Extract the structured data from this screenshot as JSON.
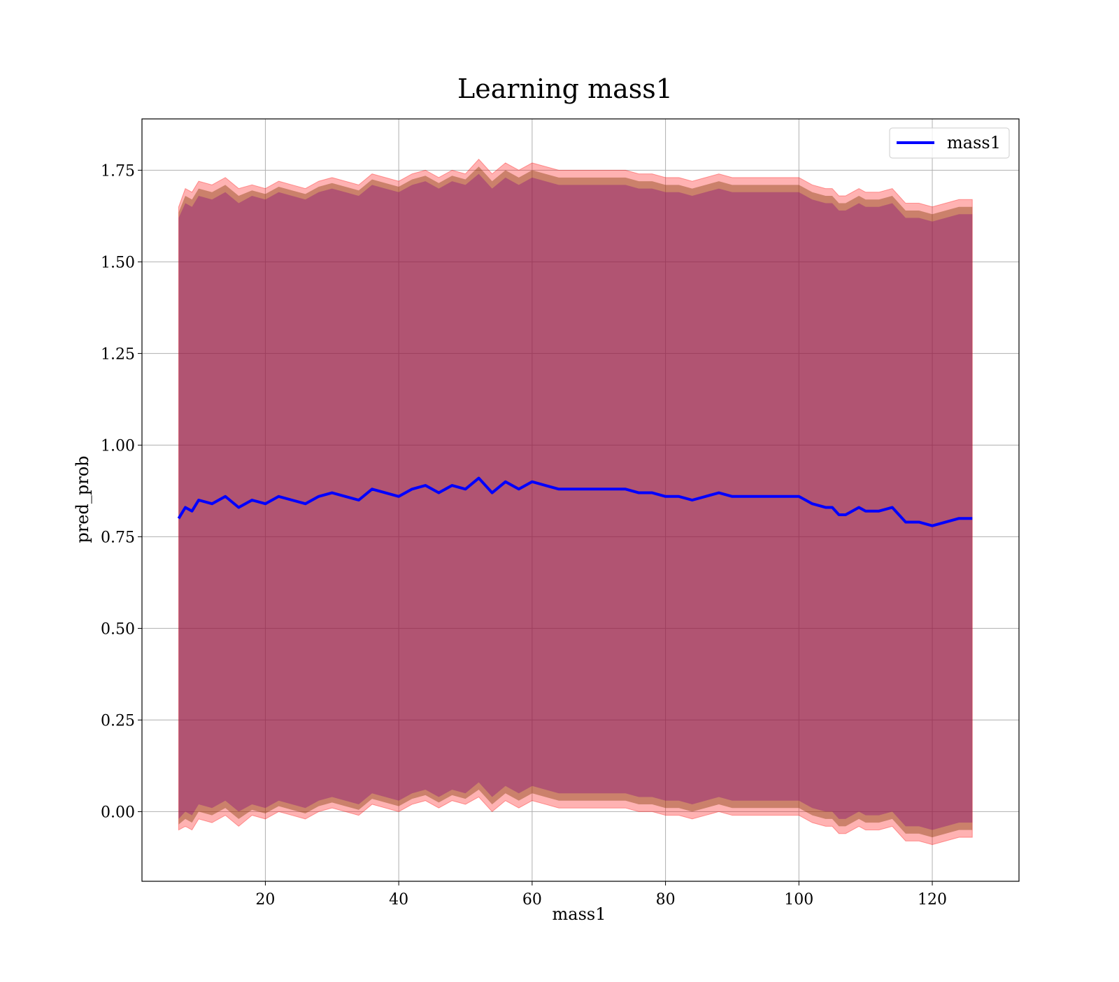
{
  "chart_data": {
    "type": "line",
    "title": "Learning mass1",
    "xlabel": "mass1",
    "ylabel": "pred_prob",
    "xlim": [
      1.5,
      133
    ],
    "ylim": [
      -0.19,
      1.89
    ],
    "xticks": [
      20,
      40,
      60,
      80,
      100,
      120
    ],
    "xtick_labels": [
      "20",
      "40",
      "60",
      "80",
      "100",
      "120"
    ],
    "yticks": [
      0.0,
      0.25,
      0.5,
      0.75,
      1.0,
      1.25,
      1.5,
      1.75
    ],
    "ytick_labels": [
      "0.00",
      "0.25",
      "0.50",
      "0.75",
      "1.00",
      "1.25",
      "1.50",
      "1.75"
    ],
    "grid": true,
    "legend_position": "top-right",
    "colors": {
      "line": "#0000ff",
      "band_outer": "#ff0000",
      "band_mid": "#8b4513",
      "band_inner": "#800080"
    },
    "series": [
      {
        "name": "mass1",
        "x": [
          7,
          8,
          9,
          10,
          12,
          14,
          16,
          18,
          20,
          22,
          24,
          26,
          28,
          30,
          32,
          34,
          36,
          38,
          40,
          42,
          44,
          46,
          48,
          50,
          52,
          54,
          56,
          58,
          60,
          62,
          64,
          66,
          68,
          70,
          72,
          74,
          76,
          78,
          80,
          82,
          84,
          86,
          88,
          90,
          92,
          94,
          96,
          98,
          100,
          102,
          104,
          105,
          106,
          107,
          108,
          109,
          110,
          112,
          114,
          116,
          118,
          120,
          122,
          124,
          126
        ],
        "y": [
          0.8,
          0.83,
          0.82,
          0.85,
          0.84,
          0.86,
          0.83,
          0.85,
          0.84,
          0.86,
          0.85,
          0.84,
          0.86,
          0.87,
          0.86,
          0.85,
          0.88,
          0.87,
          0.86,
          0.88,
          0.89,
          0.87,
          0.89,
          0.88,
          0.91,
          0.87,
          0.9,
          0.88,
          0.9,
          0.89,
          0.88,
          0.88,
          0.88,
          0.88,
          0.88,
          0.88,
          0.87,
          0.87,
          0.86,
          0.86,
          0.85,
          0.86,
          0.87,
          0.86,
          0.86,
          0.86,
          0.86,
          0.86,
          0.86,
          0.84,
          0.83,
          0.83,
          0.81,
          0.81,
          0.82,
          0.83,
          0.82,
          0.82,
          0.83,
          0.79,
          0.79,
          0.78,
          0.79,
          0.8,
          0.8
        ],
        "band_outer_halfwidth": [
          0.85,
          0.87,
          0.87,
          0.87,
          0.87,
          0.87,
          0.87,
          0.86,
          0.86,
          0.86,
          0.86,
          0.86,
          0.86,
          0.86,
          0.86,
          0.86,
          0.86,
          0.86,
          0.86,
          0.86,
          0.86,
          0.86,
          0.86,
          0.86,
          0.87,
          0.87,
          0.87,
          0.87,
          0.87,
          0.87,
          0.87,
          0.87,
          0.87,
          0.87,
          0.87,
          0.87,
          0.87,
          0.87,
          0.87,
          0.87,
          0.87,
          0.87,
          0.87,
          0.87,
          0.87,
          0.87,
          0.87,
          0.87,
          0.87,
          0.87,
          0.87,
          0.87,
          0.87,
          0.87,
          0.87,
          0.87,
          0.87,
          0.87,
          0.87,
          0.87,
          0.87,
          0.87,
          0.87,
          0.87,
          0.87
        ],
        "band_inner_halfwidth": [
          0.82,
          0.83,
          0.83,
          0.83,
          0.83,
          0.83,
          0.83,
          0.83,
          0.83,
          0.83,
          0.83,
          0.83,
          0.83,
          0.83,
          0.83,
          0.83,
          0.83,
          0.83,
          0.83,
          0.83,
          0.83,
          0.83,
          0.83,
          0.83,
          0.83,
          0.83,
          0.83,
          0.83,
          0.83,
          0.83,
          0.83,
          0.83,
          0.83,
          0.83,
          0.83,
          0.83,
          0.83,
          0.83,
          0.83,
          0.83,
          0.83,
          0.83,
          0.83,
          0.83,
          0.83,
          0.83,
          0.83,
          0.83,
          0.83,
          0.83,
          0.83,
          0.83,
          0.83,
          0.83,
          0.83,
          0.83,
          0.83,
          0.83,
          0.83,
          0.83,
          0.83,
          0.83,
          0.83,
          0.83,
          0.83
        ]
      }
    ]
  }
}
